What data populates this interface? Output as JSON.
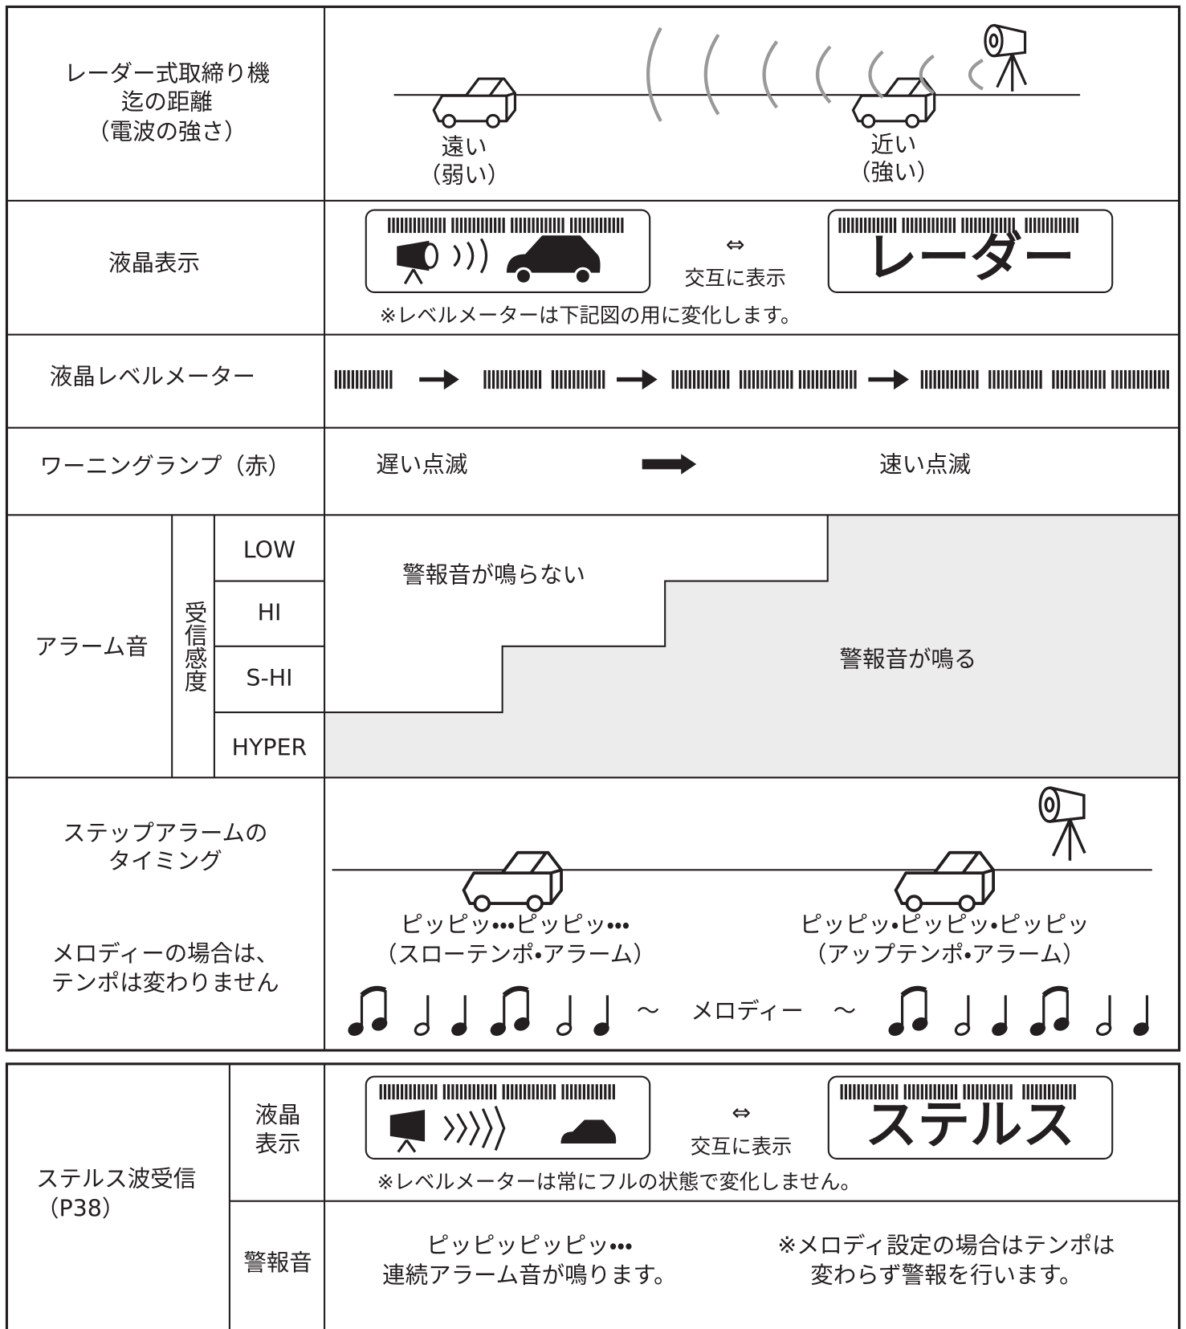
{
  "radar": {
    "label": [
      "レーダー式取締り機",
      "迄の距離",
      "（電波の強さ）"
    ],
    "far": [
      "遠い",
      "（弱い）"
    ],
    "near": [
      "近い",
      "（強い）"
    ]
  },
  "lcd": {
    "label": "液晶表示",
    "display": "レーダー",
    "arrow": "⇔",
    "alternate": "交互に表示",
    "note": "※レベルメーターは下記図の用に変化します。"
  },
  "level_meter": {
    "label": "液晶レベルメーター"
  },
  "warning_lamp": {
    "label": "ワーニングランプ（赤）",
    "slow": "遅い点滅",
    "fast": "速い点滅"
  },
  "alarm": {
    "label": "アラーム音",
    "sensitivity": "受信感度",
    "levels": [
      "LOW",
      "HI",
      "S-HI",
      "HYPER"
    ],
    "no_sound": "警報音が鳴らない",
    "sound": "警報音が鳴る"
  },
  "step_alarm": {
    "label": [
      "ステップアラームの",
      "タイミング"
    ],
    "note": [
      "メロディーの場合は、",
      "テンポは変わりません"
    ],
    "slow": [
      "ピッピッ・・・ピッピッ・・・",
      "（スローテンポ・アラーム）"
    ],
    "fast": [
      "ピッピッ・ピッピッ・ピッピッ",
      "（アップテンポ・アラーム）"
    ],
    "melody": "メロディー",
    "tilde": "～"
  },
  "stealth": {
    "label": [
      "ステルス波受信",
      "（P38）"
    ],
    "lcd_label": [
      "液晶",
      "表示"
    ],
    "display": "ステルス",
    "arrow": "⇔",
    "alternate": "交互に表示",
    "note": "※レベルメーターは常にフルの状態で変化しません。",
    "alarm_label": "警報音",
    "alarm_text": [
      "ピッピッピッピッ・・・",
      "連続アラーム音が鳴ります。"
    ],
    "melody_note": [
      "※メロディ設定の場合はテンポは",
      "変わらず警報を行います。"
    ]
  }
}
